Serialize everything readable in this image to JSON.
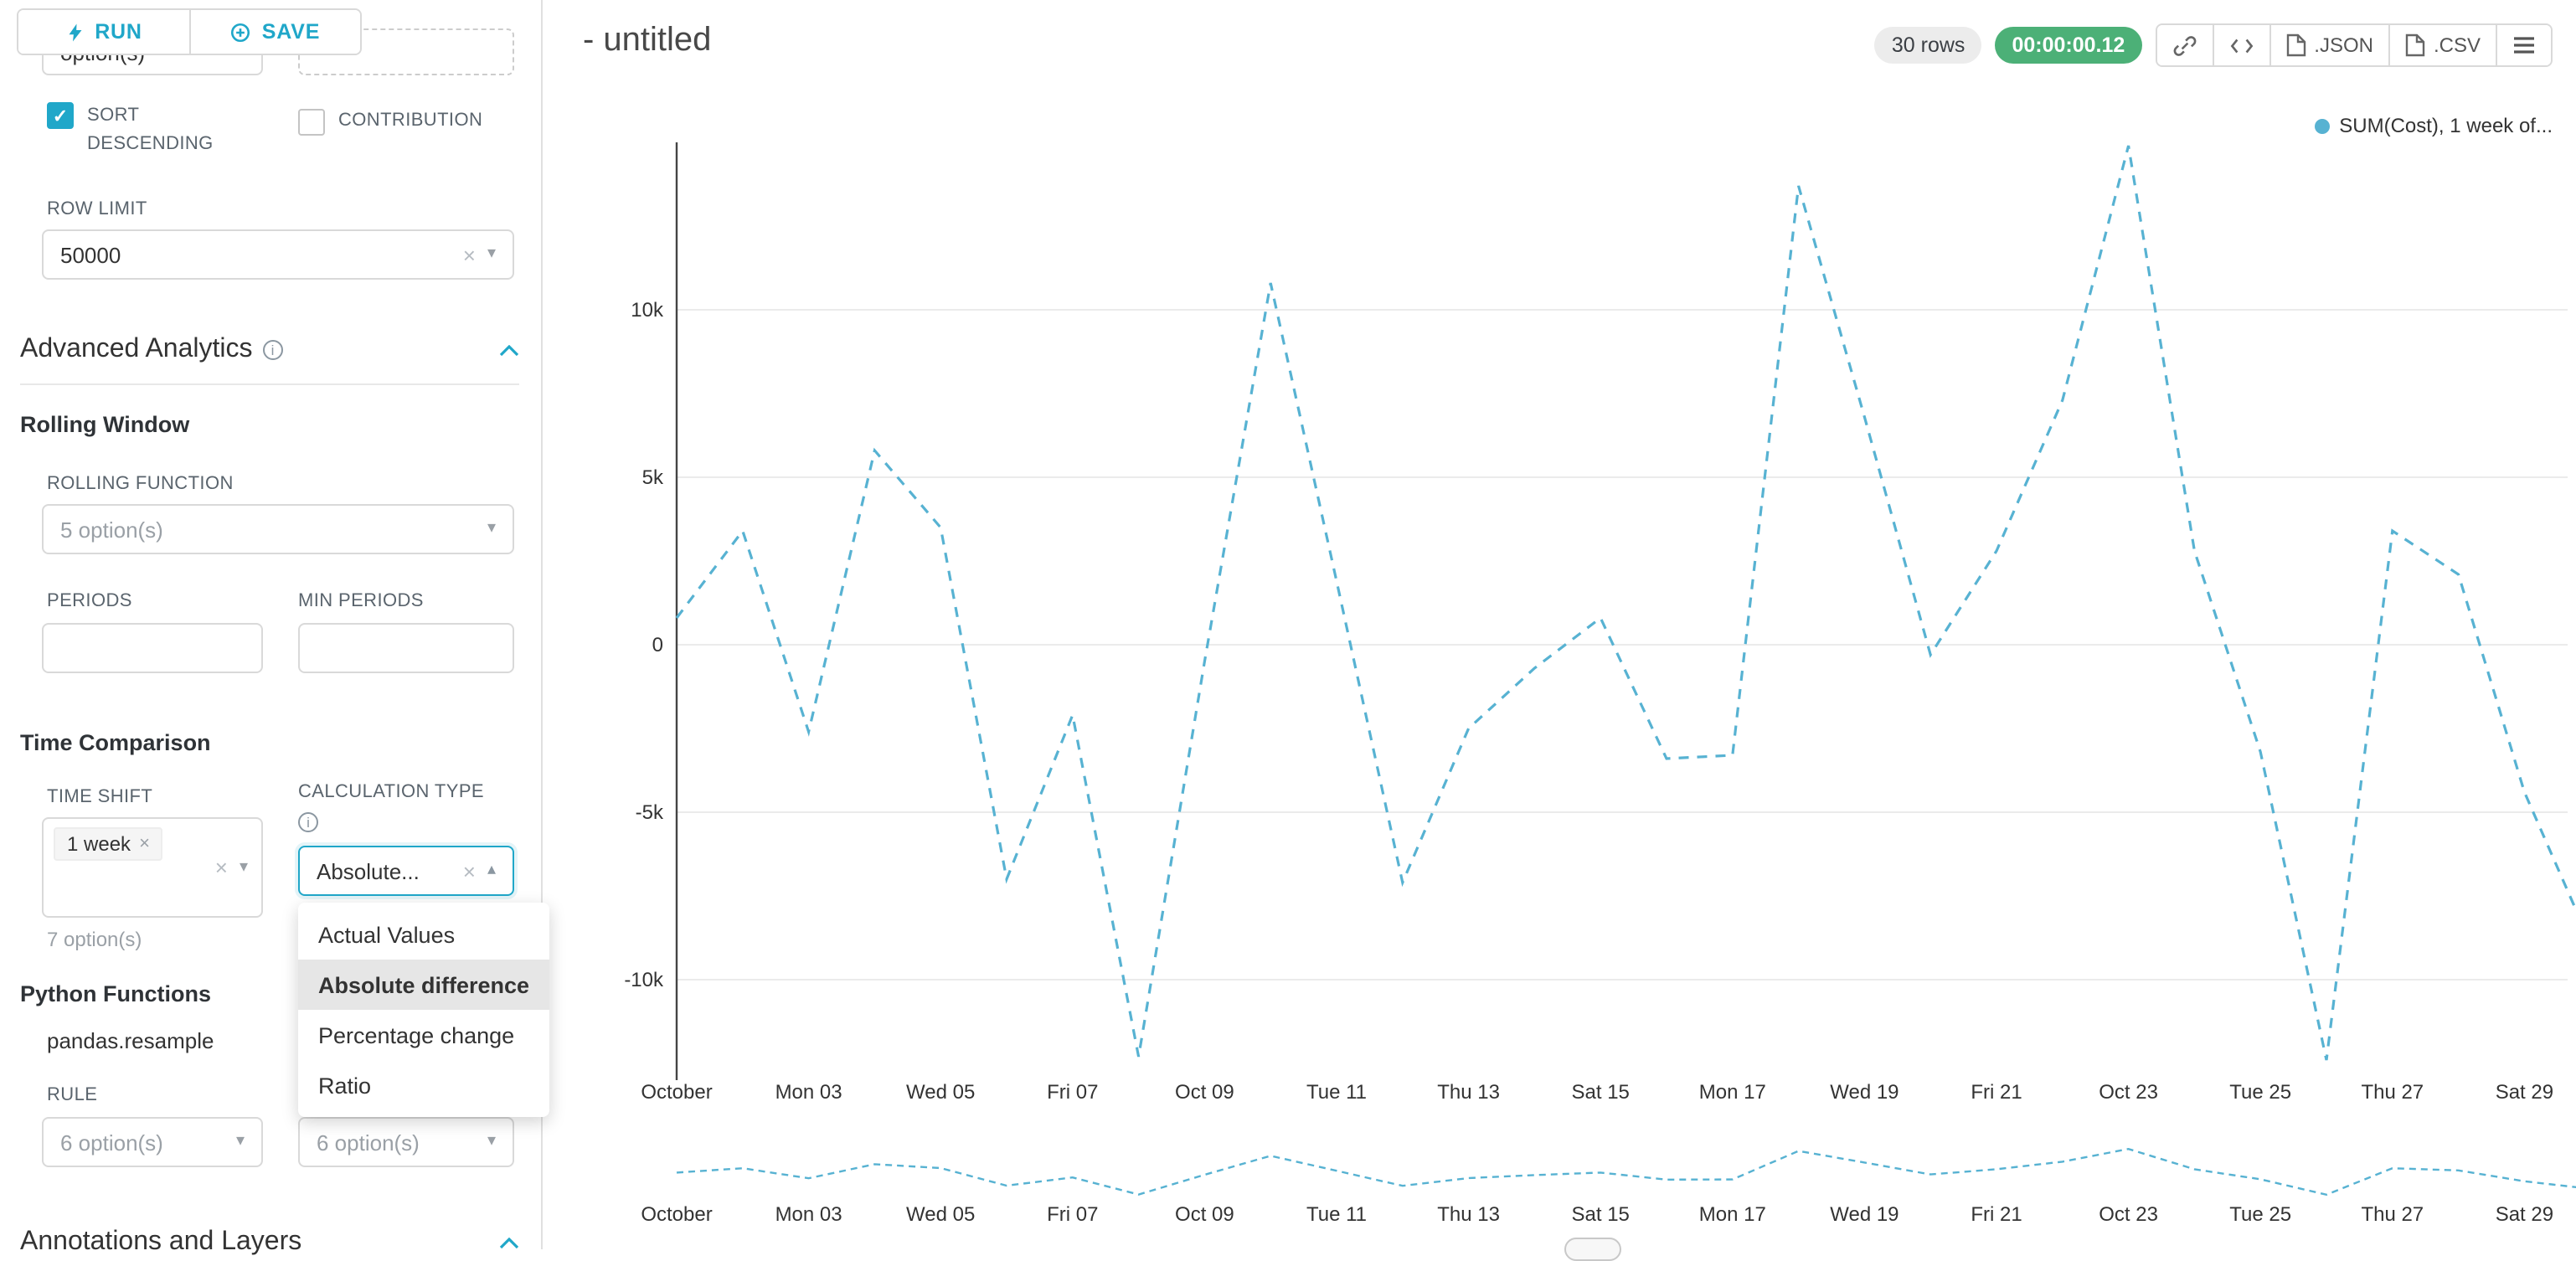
{
  "app": {
    "accent_color": "#20a7c9",
    "line_color": "#57b2d2"
  },
  "sidebar": {
    "run_button": {
      "label": "RUN"
    },
    "save_button": {
      "label": "SAVE"
    },
    "partial_field": {
      "value": "option(s)"
    },
    "checkboxes": {
      "sort_descending": {
        "label": "SORT DESCENDING",
        "checked": true
      },
      "contribution": {
        "label": "CONTRIBUTION",
        "checked": false
      }
    },
    "row_limit": {
      "label": "ROW LIMIT",
      "value": "50000"
    },
    "advanced_analytics": {
      "title": "Advanced Analytics"
    },
    "rolling_window": {
      "title": "Rolling Window",
      "rolling_function_label": "ROLLING FUNCTION",
      "rolling_function_placeholder": "5 option(s)",
      "periods_label": "PERIODS",
      "min_periods_label": "MIN PERIODS"
    },
    "time_comparison": {
      "title": "Time Comparison",
      "time_shift_label": "TIME SHIFT",
      "time_shift_tag": "1 week",
      "time_shift_hint": "7 option(s)",
      "calculation_type_label": "CALCULATION TYPE",
      "calculation_type_value": "Absolute...",
      "dropdown_options": [
        "Actual Values",
        "Absolute difference",
        "Percentage change",
        "Ratio"
      ],
      "dropdown_selected": "Absolute difference"
    },
    "python_functions": {
      "title": "Python Functions",
      "function_name": "pandas.resample",
      "rule_label": "RULE",
      "rule_placeholder": "6 option(s)",
      "method_placeholder": "6 option(s)"
    },
    "annotations_layers": {
      "title": "Annotations and Layers"
    }
  },
  "header": {
    "title": "- untitled",
    "rows_badge": "30 rows",
    "timer_badge": "00:00:00.12",
    "export_json_label": ".JSON",
    "export_csv_label": ".CSV"
  },
  "chart_data": {
    "type": "line",
    "title": "",
    "legend": [
      "SUM(Cost), 1 week of..."
    ],
    "dashed": true,
    "line_color": "#57b2d2",
    "x": [
      "Oct 01",
      "Oct 02",
      "Oct 03",
      "Oct 04",
      "Oct 05",
      "Oct 06",
      "Oct 07",
      "Oct 08",
      "Oct 09",
      "Oct 10",
      "Oct 11",
      "Oct 12",
      "Oct 13",
      "Oct 14",
      "Oct 15",
      "Oct 16",
      "Oct 17",
      "Oct 18",
      "Oct 19",
      "Oct 20",
      "Oct 21",
      "Oct 22",
      "Oct 23",
      "Oct 24",
      "Oct 25",
      "Oct 26",
      "Oct 27",
      "Oct 28",
      "Oct 29",
      "Oct 30"
    ],
    "values": [
      800,
      3400,
      -2600,
      5800,
      3500,
      -7000,
      -2100,
      -12300,
      -500,
      10800,
      1900,
      -7100,
      -2500,
      -700,
      800,
      -3400,
      -3300,
      13700,
      6800,
      -300,
      2800,
      7300,
      14900,
      2800,
      -3200,
      -12400,
      3400,
      2100,
      -4400,
      -8900
    ],
    "ylim": [
      -13000,
      15000
    ],
    "grid": true,
    "legend_position": "top-right",
    "yticks": [
      {
        "label": "10k",
        "value": 10000
      },
      {
        "label": "5k",
        "value": 5000
      },
      {
        "label": "0",
        "value": 0
      },
      {
        "label": "-5k",
        "value": -5000
      },
      {
        "label": "-10k",
        "value": -10000
      }
    ],
    "xticks": [
      {
        "label": "October",
        "index": 0
      },
      {
        "label": "Mon 03",
        "index": 2
      },
      {
        "label": "Wed 05",
        "index": 4
      },
      {
        "label": "Fri 07",
        "index": 6
      },
      {
        "label": "Oct 09",
        "index": 8
      },
      {
        "label": "Tue 11",
        "index": 10
      },
      {
        "label": "Thu 13",
        "index": 12
      },
      {
        "label": "Sat 15",
        "index": 14
      },
      {
        "label": "Mon 17",
        "index": 16
      },
      {
        "label": "Wed 19",
        "index": 18
      },
      {
        "label": "Fri 21",
        "index": 20
      },
      {
        "label": "Oct 23",
        "index": 22
      },
      {
        "label": "Tue 25",
        "index": 24
      },
      {
        "label": "Thu 27",
        "index": 26
      },
      {
        "label": "Sat 29",
        "index": 28
      }
    ]
  }
}
